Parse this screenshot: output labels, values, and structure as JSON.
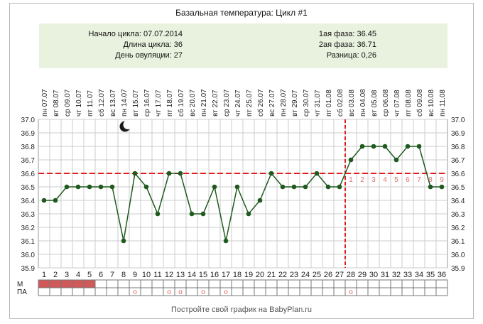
{
  "title": "Базальная температура: Цикл #1",
  "info": {
    "cycle_start": "Начало цикла: 07.07.2014",
    "cycle_length": "Длина цикла: 36",
    "ovulation_day": "День овуляции: 27",
    "phase1": "1ая фаза: 36.45",
    "phase2": "2ая фаза: 36.71",
    "difference": "Разница: 0,26"
  },
  "footer": "Постройте свой график на BabyPlan.ru",
  "row_labels": {
    "m": "М",
    "pa": "ПА"
  },
  "moon_icon": "crescent-moon-icon",
  "colors": {
    "line": "#1e5a1e",
    "point": "#1e5a1e",
    "coverline": "#e02020",
    "ovulation_line": "#e02020",
    "menstruation_fill": "#d05858",
    "pa_marker": "#e06060",
    "grid": "#cccccc",
    "info_bg": "#e9f2de"
  },
  "chart_data": {
    "type": "line",
    "title": "Базальная температура: Цикл #1",
    "weekdays": [
      "пн",
      "вт",
      "ср",
      "чт",
      "пт",
      "сб",
      "вс",
      "пн",
      "вт",
      "ср",
      "чт",
      "пт",
      "сб",
      "вс",
      "пн",
      "вт",
      "ср",
      "чт",
      "пт",
      "сб",
      "вс",
      "пн",
      "вт",
      "ср",
      "чт",
      "пт",
      "сб",
      "вс",
      "пн",
      "вт",
      "ср",
      "чт",
      "пт",
      "сб",
      "вс",
      "пн"
    ],
    "dates": [
      "07.07",
      "08.07",
      "09.07",
      "10.07",
      "11.07",
      "12.07",
      "13.07",
      "14.07",
      "15.07",
      "16.07",
      "17.07",
      "18.07",
      "19.07",
      "20.07",
      "21.07",
      "22.07",
      "23.07",
      "24.07",
      "25.07",
      "26.07",
      "27.07",
      "28.07",
      "29.07",
      "30.07",
      "31.07",
      "01.08",
      "02.08",
      "03.08",
      "04.08",
      "05.08",
      "06.08",
      "07.08",
      "08.08",
      "09.08",
      "10.08",
      "11.08"
    ],
    "days": [
      "1",
      "2",
      "3",
      "4",
      "5",
      "6",
      "7",
      "8",
      "9",
      "10",
      "11",
      "12",
      "13",
      "14",
      "15",
      "16",
      "17",
      "18",
      "19",
      "20",
      "21",
      "22",
      "23",
      "24",
      "25",
      "26",
      "27",
      "28",
      "29",
      "30",
      "31",
      "32",
      "33",
      "34",
      "35",
      "36"
    ],
    "series": [
      {
        "values": [
          36.4,
          36.4,
          36.5,
          36.5,
          36.5,
          36.5,
          36.5,
          36.1,
          36.6,
          36.5,
          36.3,
          36.6,
          36.6,
          36.3,
          36.3,
          36.5,
          36.1,
          36.5,
          36.3,
          36.4,
          36.6,
          36.5,
          36.5,
          36.5,
          36.6,
          36.5,
          36.5,
          36.7,
          36.8,
          36.8,
          36.8,
          36.7,
          36.8,
          36.8,
          36.5,
          36.5
        ]
      }
    ],
    "ylim": [
      35.9,
      37.0
    ],
    "y_ticks": [
      "37.0",
      "36.9",
      "36.8",
      "36.7",
      "36.6",
      "36.5",
      "36.4",
      "36.3",
      "36.2",
      "36.1",
      "36.0",
      "35.9"
    ],
    "coverline": 36.6,
    "ovulation_day": 27,
    "post_ovulation_labels": [
      "1",
      "2",
      "3",
      "4",
      "5",
      "6",
      "7",
      "8",
      "9"
    ],
    "menstruation_days": [
      1,
      2,
      3,
      4,
      5
    ],
    "pa_days": [
      9,
      12,
      13,
      15,
      17,
      28
    ],
    "pa_marker": "о",
    "moon_day": 8
  }
}
